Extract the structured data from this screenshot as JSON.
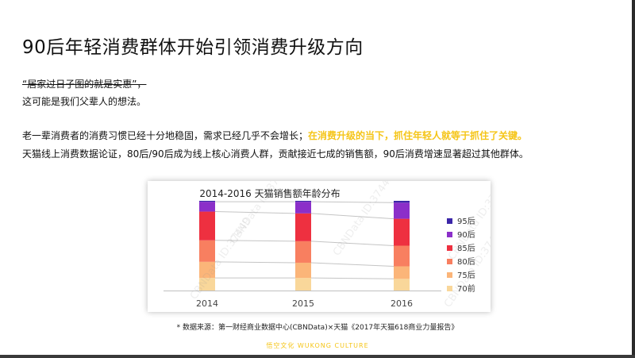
{
  "slide": {
    "title": "90后年轻消费群体开始引领消费升级方向",
    "quote": "“居家过日子图的就是实惠”，",
    "line2": "这可能是我们父辈人的想法。",
    "para1_normal": "老一辈消费者的消费习惯已经十分地稳固，需求已经几乎不会增长；",
    "para1_highlight": "在消费升级的当下，抓住年轻人就等于抓住了关键。",
    "para2": "天猫线上消费数据论证，80后/90后成为线上核心消费人群，贡献接近七成的销售额，90后消费增速显著超过其他群体。",
    "source": "* 数据来源：第一财经商业数据中心(CBNData)×天猫《2017年天猫618商业力量报告》",
    "brand": "悟空文化 WUKONG CULTURE",
    "highlight_color": "#f5c518"
  },
  "chart_data": {
    "type": "bar",
    "stacked": true,
    "percent": true,
    "title": "2014-2016 天猫销售额年龄分布",
    "categories": [
      "2014",
      "2015",
      "2016"
    ],
    "watermark": "CBNData ID:37449",
    "legend_position": "right",
    "series": [
      {
        "name": "70前",
        "color": "#f9d79a",
        "values": [
          14,
          14,
          13
        ]
      },
      {
        "name": "75后",
        "color": "#fbb579",
        "values": [
          18,
          17,
          14
        ]
      },
      {
        "name": "80后",
        "color": "#f87f60",
        "values": [
          24,
          24,
          23
        ]
      },
      {
        "name": "85后",
        "color": "#ee3040",
        "values": [
          32,
          31,
          30
        ]
      },
      {
        "name": "90后",
        "color": "#8b2fc9",
        "values": [
          11,
          13,
          18
        ]
      },
      {
        "name": "95后",
        "color": "#3b26a8",
        "values": [
          1,
          1,
          2
        ]
      }
    ]
  }
}
